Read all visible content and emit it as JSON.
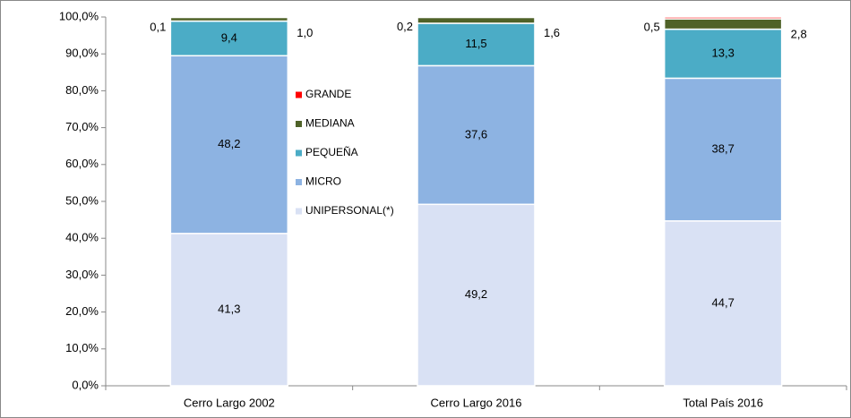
{
  "chart_data": {
    "type": "stacked_bar",
    "categories": [
      "Cerro Largo 2002",
      "Cerro Largo 2016",
      "Total País 2016"
    ],
    "series": [
      {
        "name": "UNIPERSONAL(*)",
        "color": "#d9e1f4",
        "values": [
          41.3,
          49.2,
          44.7
        ],
        "value_labels": [
          "41,3",
          "49,2",
          "44,7"
        ]
      },
      {
        "name": "MICRO",
        "color": "#8db3e2",
        "values": [
          48.2,
          37.6,
          38.7
        ],
        "value_labels": [
          "48,2",
          "37,6",
          "38,7"
        ]
      },
      {
        "name": "PEQUEÑA",
        "color": "#4bacc6",
        "values": [
          9.4,
          11.5,
          13.3
        ],
        "value_labels": [
          "9,4",
          "11,5",
          "13,3"
        ]
      },
      {
        "name": "MEDIANA",
        "color": "#4f6228",
        "values": [
          1.0,
          1.6,
          2.8
        ],
        "value_labels": [
          "1,0",
          "1,6",
          "2,8"
        ]
      },
      {
        "name": "GRANDE",
        "color": "#ff0000",
        "values": [
          0.1,
          0.2,
          0.5
        ],
        "value_labels": [
          "0,1",
          "0,2",
          "0,5"
        ]
      }
    ],
    "ylim": [
      0,
      100
    ],
    "yticks": [
      {
        "value": 0,
        "label": "0,0%"
      },
      {
        "value": 10,
        "label": "10,0%"
      },
      {
        "value": 20,
        "label": "20,0%"
      },
      {
        "value": 30,
        "label": "30,0%"
      },
      {
        "value": 40,
        "label": "40,0%"
      },
      {
        "value": 50,
        "label": "50,0%"
      },
      {
        "value": 60,
        "label": "60,0%"
      },
      {
        "value": 70,
        "label": "70,0%"
      },
      {
        "value": 80,
        "label": "80,0%"
      },
      {
        "value": 90,
        "label": "90,0%"
      },
      {
        "value": 100,
        "label": "100,0%"
      }
    ]
  }
}
